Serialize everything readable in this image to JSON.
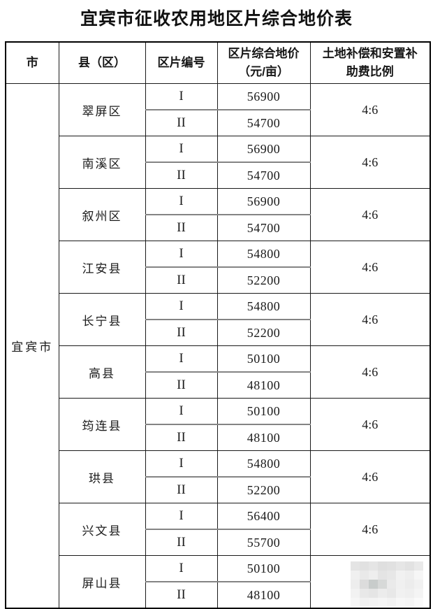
{
  "title": "宜宾市征收农用地区片综合地价表",
  "table": {
    "columns": [
      "市",
      "县（区）",
      "区片编号",
      "区片综合地价\n（元/亩）",
      "土地补偿和安置补\n助费比例"
    ],
    "city": "宜宾市",
    "groups": [
      {
        "county": "翠屏区",
        "rows": [
          {
            "zone": "I",
            "price": "56900"
          },
          {
            "zone": "II",
            "price": "54700"
          }
        ],
        "ratio": "4:6"
      },
      {
        "county": "南溪区",
        "rows": [
          {
            "zone": "I",
            "price": "56900"
          },
          {
            "zone": "II",
            "price": "54700"
          }
        ],
        "ratio": "4:6"
      },
      {
        "county": "叙州区",
        "rows": [
          {
            "zone": "I",
            "price": "56900"
          },
          {
            "zone": "II",
            "price": "54700"
          }
        ],
        "ratio": "4:6"
      },
      {
        "county": "江安县",
        "rows": [
          {
            "zone": "I",
            "price": "54800"
          },
          {
            "zone": "II",
            "price": "52200"
          }
        ],
        "ratio": "4:6"
      },
      {
        "county": "长宁县",
        "rows": [
          {
            "zone": "I",
            "price": "54800"
          },
          {
            "zone": "II",
            "price": "52200"
          }
        ],
        "ratio": "4:6"
      },
      {
        "county": "高县",
        "rows": [
          {
            "zone": "I",
            "price": "50100"
          },
          {
            "zone": "II",
            "price": "48100"
          }
        ],
        "ratio": "4:6"
      },
      {
        "county": "筠连县",
        "rows": [
          {
            "zone": "I",
            "price": "50100"
          },
          {
            "zone": "II",
            "price": "48100"
          }
        ],
        "ratio": "4:6"
      },
      {
        "county": "珙县",
        "rows": [
          {
            "zone": "I",
            "price": "54800"
          },
          {
            "zone": "II",
            "price": "52200"
          }
        ],
        "ratio": "4:6"
      },
      {
        "county": "兴文县",
        "rows": [
          {
            "zone": "I",
            "price": "56400"
          },
          {
            "zone": "II",
            "price": "55700"
          }
        ],
        "ratio": "4:6"
      },
      {
        "county": "屏山县",
        "rows": [
          {
            "zone": "I",
            "price": "50100"
          },
          {
            "zone": "II",
            "price": "48100"
          }
        ],
        "ratio": "",
        "ratio_masked": true
      }
    ]
  },
  "mosaic": {
    "cols": 8,
    "rows": 5,
    "cell_size": 13,
    "colors": [
      "#e4e4e4",
      "#e1e1e1",
      "#e5e5e5",
      "#dfdfdf",
      "#e1e1e1",
      "#e6e6e6",
      "#e2e2e2",
      "#e9e9e9",
      "#f0f0f0",
      "#e9e9e9",
      "#eeeeee",
      "#e4e4e4",
      "#e7e7e7",
      "#f1f1f1",
      "#eeeeee",
      "#f6f6f6",
      "#ededed",
      "#dcdcdc",
      "#c8cccb",
      "#d7d9d8",
      "#eaeaea",
      "#f0f0f0",
      "#ececec",
      "#f1f1f1",
      "#f2f2f2",
      "#e8e8e8",
      "#e5e5e5",
      "#ececec",
      "#e8e8e8",
      "#f1f1f1",
      "#efefef",
      "#f4f4f4",
      "#f6f6f6",
      "#f1f1f1",
      "#f3f3f3",
      "#f5f5f5",
      "#f2f2f2",
      "#f7f7f7",
      "#f5f5f5",
      "#fafafa"
    ]
  },
  "colors": {
    "border_outer": "#000000",
    "border_inner": "#1a1a1a",
    "border_divider": "#848484",
    "text": "#1b1b1b",
    "background": "#ffffff"
  }
}
